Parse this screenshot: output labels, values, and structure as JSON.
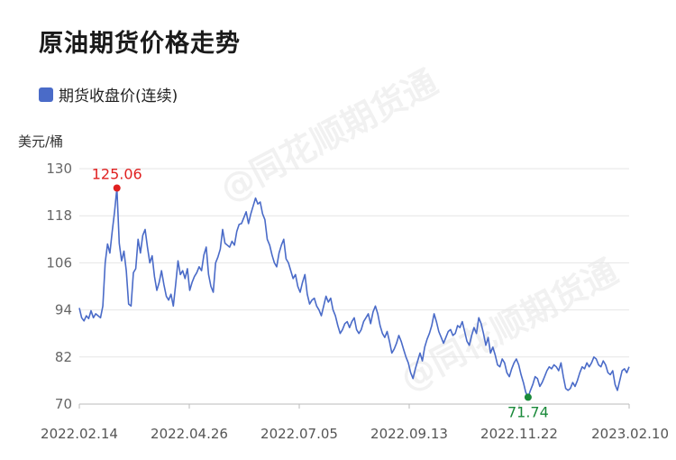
{
  "title": "原油期货价格走势",
  "legend": {
    "label": "期货收盘价(连续)",
    "color": "#4a6bc8"
  },
  "unit_label": "美元/桶",
  "watermark": "@同花顺期货通",
  "chart_data": {
    "type": "line",
    "title": "原油期货价格走势",
    "xlabel": "",
    "ylabel": "美元/桶",
    "ylim": [
      70,
      130
    ],
    "yticks": [
      130,
      118,
      106,
      94,
      82,
      70
    ],
    "x_tick_labels": [
      "2022.02.14",
      "2022.04.26",
      "2022.07.05",
      "2022.09.13",
      "2022.11.22",
      "2023.02.10"
    ],
    "grid": true,
    "legend_position": "top-left",
    "series": [
      {
        "name": "期货收盘价(连续)",
        "color": "#4a6bc8",
        "values": [
          94.5,
          92.0,
          91.2,
          92.5,
          91.8,
          93.8,
          92.0,
          93.0,
          92.5,
          92.0,
          95.0,
          106.0,
          110.8,
          108.5,
          114.0,
          119.0,
          125.06,
          111.0,
          106.5,
          109.0,
          104.0,
          95.5,
          95.0,
          103.5,
          104.5,
          112.0,
          108.5,
          113.0,
          114.5,
          110.0,
          106.0,
          107.8,
          102.5,
          99.0,
          101.0,
          104.0,
          100.5,
          97.5,
          96.5,
          98.0,
          95.0,
          100.5,
          106.5,
          103.0,
          104.0,
          102.0,
          104.5,
          99.0,
          101.0,
          102.5,
          103.5,
          105.0,
          104.0,
          108.0,
          110.0,
          103.0,
          100.0,
          98.5,
          106.0,
          107.5,
          109.5,
          114.5,
          111.0,
          110.5,
          110.0,
          111.5,
          110.5,
          114.0,
          115.8,
          116.0,
          117.5,
          119.0,
          116.0,
          118.5,
          120.5,
          122.5,
          121.0,
          121.5,
          118.5,
          117.0,
          112.0,
          110.5,
          108.0,
          106.0,
          105.0,
          108.5,
          110.5,
          112.0,
          107.0,
          106.0,
          104.0,
          102.0,
          103.0,
          100.0,
          98.5,
          101.0,
          103.0,
          98.0,
          95.5,
          96.5,
          97.0,
          95.0,
          94.0,
          92.5,
          95.0,
          97.5,
          96.0,
          97.0,
          94.0,
          92.5,
          90.0,
          88.0,
          89.0,
          90.5,
          91.0,
          89.5,
          91.0,
          92.0,
          89.0,
          88.0,
          89.0,
          91.0,
          92.0,
          93.0,
          90.5,
          93.5,
          95.0,
          93.0,
          90.0,
          88.0,
          87.0,
          88.5,
          86.0,
          83.0,
          84.0,
          85.5,
          87.5,
          86.0,
          84.0,
          82.0,
          80.5,
          78.0,
          76.5,
          79.0,
          81.0,
          83.0,
          81.0,
          84.5,
          86.5,
          88.0,
          90.0,
          93.0,
          91.0,
          88.5,
          87.0,
          85.5,
          87.0,
          88.5,
          89.0,
          87.5,
          88.0,
          90.0,
          89.5,
          91.0,
          88.5,
          86.0,
          85.0,
          87.5,
          89.5,
          88.0,
          92.0,
          90.5,
          88.0,
          85.0,
          87.0,
          83.0,
          84.5,
          82.5,
          80.0,
          79.5,
          81.5,
          80.5,
          78.0,
          77.0,
          79.0,
          80.5,
          81.5,
          80.0,
          77.5,
          75.5,
          73.0,
          71.74,
          73.5,
          75.0,
          77.0,
          76.5,
          74.5,
          75.5,
          77.0,
          78.5,
          79.5,
          79.0,
          80.0,
          79.5,
          78.5,
          80.5,
          77.0,
          74.0,
          73.5,
          74.0,
          75.5,
          74.5,
          76.0,
          78.0,
          79.5,
          79.0,
          80.5,
          79.5,
          80.5,
          82.0,
          81.5,
          80.0,
          79.5,
          81.0,
          80.0,
          78.0,
          77.5,
          78.5,
          75.0,
          73.5,
          76.0,
          78.5,
          79.0,
          78.0,
          79.5
        ]
      }
    ],
    "annotations": [
      {
        "label": "125.06",
        "value": 125.06,
        "kind": "max",
        "color": "#e02020"
      },
      {
        "label": "71.74",
        "value": 71.74,
        "kind": "min",
        "color": "#1a8a3a"
      }
    ]
  }
}
